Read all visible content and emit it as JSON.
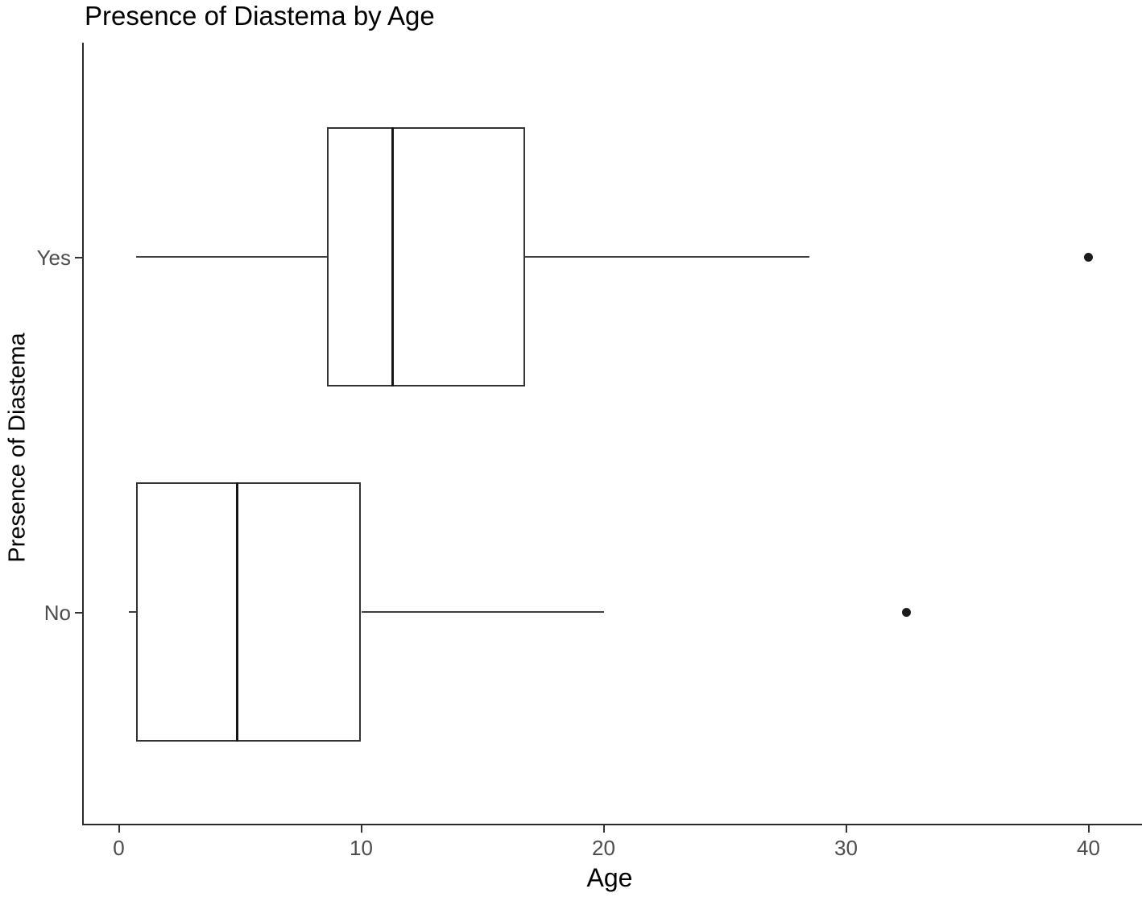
{
  "chart_data": {
    "type": "boxplot",
    "orientation": "horizontal",
    "title": "Presence of Diastema by Age",
    "xlabel": "Age",
    "ylabel": "Presence of Diastema",
    "categories": [
      "Yes",
      "No"
    ],
    "x_ticks": [
      0,
      10,
      20,
      30,
      40
    ],
    "xlim": [
      -1.5,
      42
    ],
    "grid": false,
    "legend": "none",
    "series": [
      {
        "category": "Yes",
        "whisker_min": 0.7,
        "q1": 8.6,
        "median": 11.3,
        "q3": 16.75,
        "whisker_max": 28.5,
        "outliers": [
          40
        ]
      },
      {
        "category": "No",
        "whisker_min": 0.4,
        "q1": 0.7,
        "median": 4.9,
        "q3": 10,
        "whisker_max": 20,
        "outliers": [
          32.5
        ]
      }
    ]
  },
  "colors": {
    "background": "#ffffff",
    "axis_line": "#2b2b2b",
    "box_border": "#333333",
    "median_line": "#151515",
    "whisker": "#404040",
    "outlier": "#1c1c1c",
    "tick_label": "#4d4d4d",
    "title_text": "#000000"
  }
}
